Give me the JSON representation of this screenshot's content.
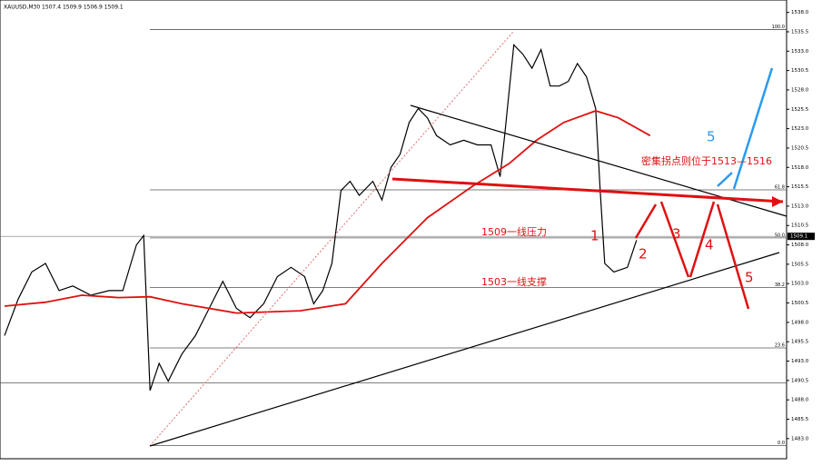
{
  "chart_data": {
    "type": "line",
    "title": "XAUUSD,M30 1507.4 1509.9 1506.9 1509.1",
    "xlim": [
      0,
      173
    ],
    "ylim": [
      1480.4,
      1539.6
    ],
    "yticks": [
      {
        "value": 1538,
        "label": "1538.0"
      },
      1535.5,
      {
        "value": 1533,
        "label": "1533.0"
      },
      1530.5,
      {
        "value": 1528,
        "label": "1528.0"
      },
      1525.5,
      {
        "value": 1523,
        "label": "1523.0"
      },
      1520.5,
      {
        "value": 1518,
        "label": "1518.0"
      },
      1515.5,
      {
        "value": 1513,
        "label": "1513.0"
      },
      1510.5,
      {
        "value": 1508,
        "label": "1508.0"
      },
      1505.5,
      {
        "value": 1503,
        "label": "1503.0"
      },
      1500.5,
      {
        "value": 1498,
        "label": "1498.0"
      },
      1495.5,
      {
        "value": 1493,
        "label": "1493.0"
      },
      1490.5,
      {
        "value": 1488,
        "label": "1488.0"
      },
      1485.5,
      {
        "value": 1483,
        "label": "1483.0"
      }
    ],
    "series": [
      {
        "name": "XAUUSD",
        "color": "#000000",
        "x": [
          1,
          4,
          7,
          10,
          13,
          16,
          20,
          24,
          27,
          30,
          31.6,
          33,
          35,
          37,
          40,
          43,
          46,
          49,
          52,
          55,
          58,
          61,
          64,
          67,
          69,
          71,
          73,
          75,
          77,
          79,
          82,
          84,
          86,
          88,
          90,
          92,
          94,
          96,
          99,
          102,
          105,
          108,
          110,
          111,
          113,
          115,
          117,
          119,
          121,
          123,
          125,
          127,
          129,
          131,
          132,
          133,
          135,
          138,
          140
        ],
        "values": [
          1496.3,
          1501.0,
          1504.5,
          1505.6,
          1502.1,
          1502.7,
          1501.5,
          1502.1,
          1502.1,
          1508.0,
          1509.2,
          1489.2,
          1492.7,
          1490.4,
          1493.9,
          1496.3,
          1499.8,
          1503.3,
          1499.8,
          1498.6,
          1500.4,
          1503.9,
          1505.1,
          1503.9,
          1500.4,
          1502.1,
          1505.6,
          1515.0,
          1516.2,
          1514.4,
          1516.2,
          1513.8,
          1518.0,
          1519.7,
          1523.8,
          1525.6,
          1524.4,
          1522.1,
          1520.9,
          1521.5,
          1520.9,
          1520.9,
          1516.8,
          1522.1,
          1533.8,
          1532.6,
          1530.8,
          1533.2,
          1528.5,
          1528.5,
          1529.1,
          1531.4,
          1529.7,
          1525.6,
          1515.0,
          1505.6,
          1504.5,
          1505.1,
          1508.6
        ]
      },
      {
        "name": "MA",
        "color": "#e01010",
        "x": [
          1,
          10,
          18,
          26,
          33,
          40,
          52,
          66,
          76,
          84,
          94,
          104,
          112,
          118,
          124,
          131,
          136,
          143
        ],
        "values": [
          1500.1,
          1500.6,
          1501.5,
          1501.2,
          1501.3,
          1500.4,
          1499.2,
          1499.5,
          1500.4,
          1505.6,
          1511.5,
          1515.6,
          1518.5,
          1521.5,
          1523.8,
          1525.3,
          1524.4,
          1522.1
        ]
      }
    ],
    "fib_levels": [
      {
        "value": 1535.8,
        "label": "100.0"
      },
      {
        "value": 1515.1,
        "label": "61.8"
      },
      {
        "value": 1508.9,
        "label": "50.0"
      },
      {
        "value": 1502.5,
        "label": "38.2"
      },
      {
        "value": 1494.7,
        "label": "23.6"
      },
      {
        "value": 1482.1,
        "label": "0.0"
      }
    ],
    "extra_level": 1490.2,
    "current_price": {
      "value": 1509.1,
      "label": "1509.1"
    },
    "annotations": [
      "5",
      "密集拐点则位于1513—1516",
      "1509一线压力",
      "1503一线支撑",
      "1",
      "2",
      "3",
      "4",
      "5"
    ]
  }
}
